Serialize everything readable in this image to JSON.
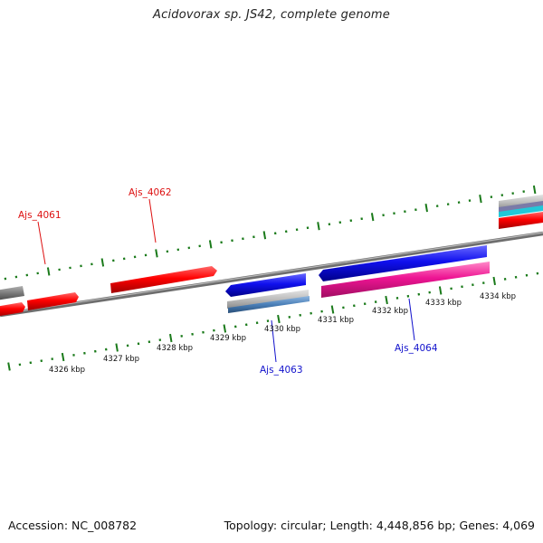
{
  "title": "Acidovorax sp. JS42, complete genome",
  "footer": {
    "accession": "Accession: NC_008782",
    "summary": "Topology: circular; Length: 4,448,856 bp; Genes: 4,069"
  },
  "colors": {
    "background": "#ffffff",
    "backbone": "#8a8a8a",
    "tick": "#1a7a1a",
    "forward_gene": "#ff0000",
    "reverse_gene": "#1010ee",
    "pink_feature": "#ee1493",
    "grey_feature": "#8c8c8c",
    "steel_feature": "#4a7fb8",
    "upper_label": "#dd1111",
    "lower_label": "#1111cc"
  },
  "ruler_labels": [
    "4326 kbp",
    "4327 kbp",
    "4328 kbp",
    "4329 kbp",
    "4330 kbp",
    "4331 kbp",
    "4332 kbp",
    "4333 kbp",
    "4334 kbp"
  ],
  "gene_labels": {
    "upper": [
      "Ajs_4061",
      "Ajs_4062"
    ],
    "lower": [
      "Ajs_4063",
      "Ajs_4064"
    ]
  }
}
